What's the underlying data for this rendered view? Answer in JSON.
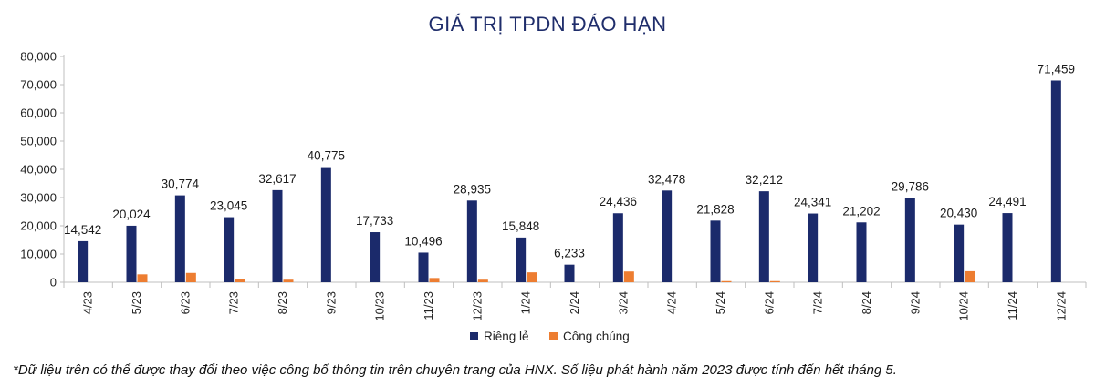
{
  "chart_data": {
    "type": "bar",
    "title": "GIÁ TRỊ TPDN ĐÁO HẠN",
    "categories": [
      "4/23",
      "5/23",
      "6/23",
      "7/23",
      "8/23",
      "9/23",
      "10/23",
      "11/23",
      "12/23",
      "1/24",
      "2/24",
      "3/24",
      "4/24",
      "5/24",
      "6/24",
      "7/24",
      "8/24",
      "9/24",
      "10/24",
      "11/24",
      "12/24"
    ],
    "series": [
      {
        "name": "Riêng lẻ",
        "color": "#1b2a6b",
        "values": [
          14542,
          20024,
          30774,
          23045,
          32617,
          40775,
          17733,
          10496,
          28935,
          15848,
          6233,
          24436,
          32478,
          21828,
          32212,
          24341,
          21202,
          29786,
          20430,
          24491,
          71459
        ],
        "labels": [
          "14,542",
          "20,024",
          "30,774",
          "23,045",
          "32,617",
          "40,775",
          "17,733",
          "10,496",
          "28,935",
          "15,848",
          "6,233",
          "24,436",
          "32,478",
          "21,828",
          "32,212",
          "24,341",
          "21,202",
          "29,786",
          "20,430",
          "24,491",
          "71,459"
        ]
      },
      {
        "name": "Công chúng",
        "color": "#ed7d31",
        "values": [
          0,
          2800,
          3300,
          1200,
          900,
          0,
          0,
          1500,
          900,
          3500,
          0,
          3800,
          0,
          400,
          400,
          0,
          0,
          0,
          3900,
          0,
          0
        ]
      }
    ],
    "ylim": [
      0,
      80000
    ],
    "yticks": [
      0,
      10000,
      20000,
      30000,
      40000,
      50000,
      60000,
      70000,
      80000
    ],
    "ytick_labels": [
      "0",
      "10,000",
      "20,000",
      "30,000",
      "40,000",
      "50,000",
      "60,000",
      "70,000",
      "80,000"
    ],
    "grid": false,
    "legend_position": "bottom"
  },
  "footnote": "*Dữ liệu trên có thể được thay đổi theo việc công bố thông tin trên chuyên trang của HNX. Số liệu phát hành năm 2023 được tính đến hết tháng 5."
}
